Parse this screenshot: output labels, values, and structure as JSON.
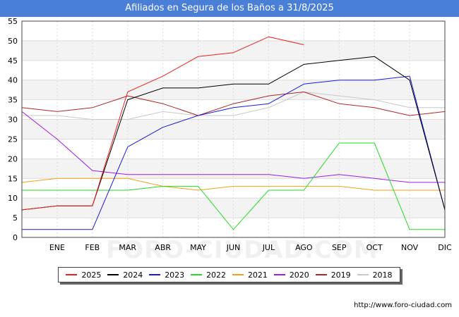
{
  "header": {
    "title": "Afiliados en Segura de los Baños a 31/8/2025"
  },
  "footer": {
    "source": "http://www.foro-ciudad.com"
  },
  "watermark": "FORO-CIUDAD.COM",
  "chart_data": {
    "type": "line",
    "title": "Afiliados en Segura de los Baños a 31/8/2025",
    "xlabel": "",
    "ylabel": "",
    "categories": [
      "",
      "ENE",
      "FEB",
      "MAR",
      "ABR",
      "MAY",
      "JUN",
      "JUL",
      "AGO",
      "SEP",
      "OCT",
      "NOV",
      "DIC"
    ],
    "ylim": [
      0,
      55
    ],
    "yticks": [
      0,
      5,
      10,
      15,
      20,
      25,
      30,
      35,
      40,
      45,
      50,
      55
    ],
    "grid": true,
    "legend_position": "bottom",
    "series": [
      {
        "name": "2025",
        "color": "#e8211f",
        "values": [
          7,
          8,
          8,
          37,
          41,
          46,
          47,
          51,
          49,
          null,
          null,
          null,
          null
        ]
      },
      {
        "name": "2024",
        "color": "#000000",
        "values": [
          7,
          8,
          8,
          35,
          38,
          38,
          39,
          39,
          44,
          45,
          46,
          40,
          7
        ]
      },
      {
        "name": "2023",
        "color": "#1a1adb",
        "values": [
          2,
          2,
          2,
          23,
          28,
          31,
          33,
          34,
          39,
          40,
          40,
          41,
          7
        ]
      },
      {
        "name": "2022",
        "color": "#22dd22",
        "values": [
          12,
          12,
          12,
          12,
          13,
          13,
          2,
          12,
          12,
          24,
          24,
          2,
          2
        ]
      },
      {
        "name": "2021",
        "color": "#f2a114",
        "values": [
          14,
          15,
          15,
          15,
          13,
          12,
          13,
          13,
          13,
          13,
          12,
          12,
          12
        ]
      },
      {
        "name": "2020",
        "color": "#a31ae0",
        "values": [
          32,
          25,
          17,
          16,
          16,
          16,
          16,
          16,
          15,
          16,
          15,
          14,
          14
        ]
      },
      {
        "name": "2019",
        "color": "#b02525",
        "values": [
          33,
          32,
          33,
          36,
          34,
          31,
          34,
          36,
          37,
          34,
          33,
          31,
          32
        ]
      },
      {
        "name": "2018",
        "color": "#c8c8c8",
        "values": [
          31,
          31,
          30,
          30,
          32,
          31,
          31,
          33,
          37,
          36,
          35,
          33,
          33
        ]
      }
    ]
  }
}
